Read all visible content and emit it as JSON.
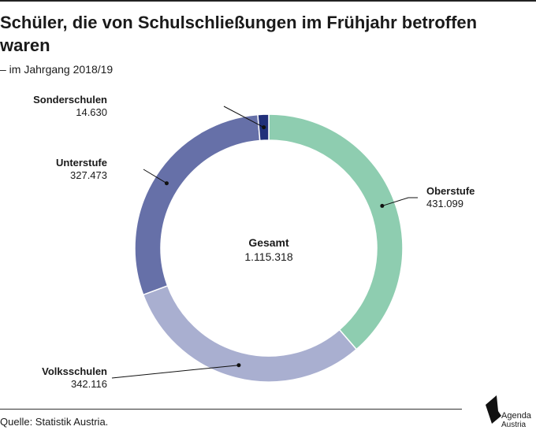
{
  "title": "Schüler, die von Schulschließungen im Frühjahr betroffen waren",
  "subtitle": "– im Jahrgang 2018/19",
  "source": "Quelle: Statistik Austria.",
  "brand": {
    "line1": "Agenda",
    "line2": "Austria"
  },
  "chart_data": {
    "type": "pie",
    "donut": true,
    "center_label": "Gesamt",
    "center_value": "1.115.318",
    "legend": "none",
    "slices": [
      {
        "label": "Oberstufe",
        "value": 431099,
        "display": "431.099",
        "color": "#8ecdb0"
      },
      {
        "label": "Volksschulen",
        "value": 342116,
        "display": "342.116",
        "color": "#a9afd0"
      },
      {
        "label": "Unterstufe",
        "value": 327473,
        "display": "327.473",
        "color": "#6670a8"
      },
      {
        "label": "Sonderschulen",
        "value": 14630,
        "display": "14.630",
        "color": "#22307a"
      }
    ]
  }
}
